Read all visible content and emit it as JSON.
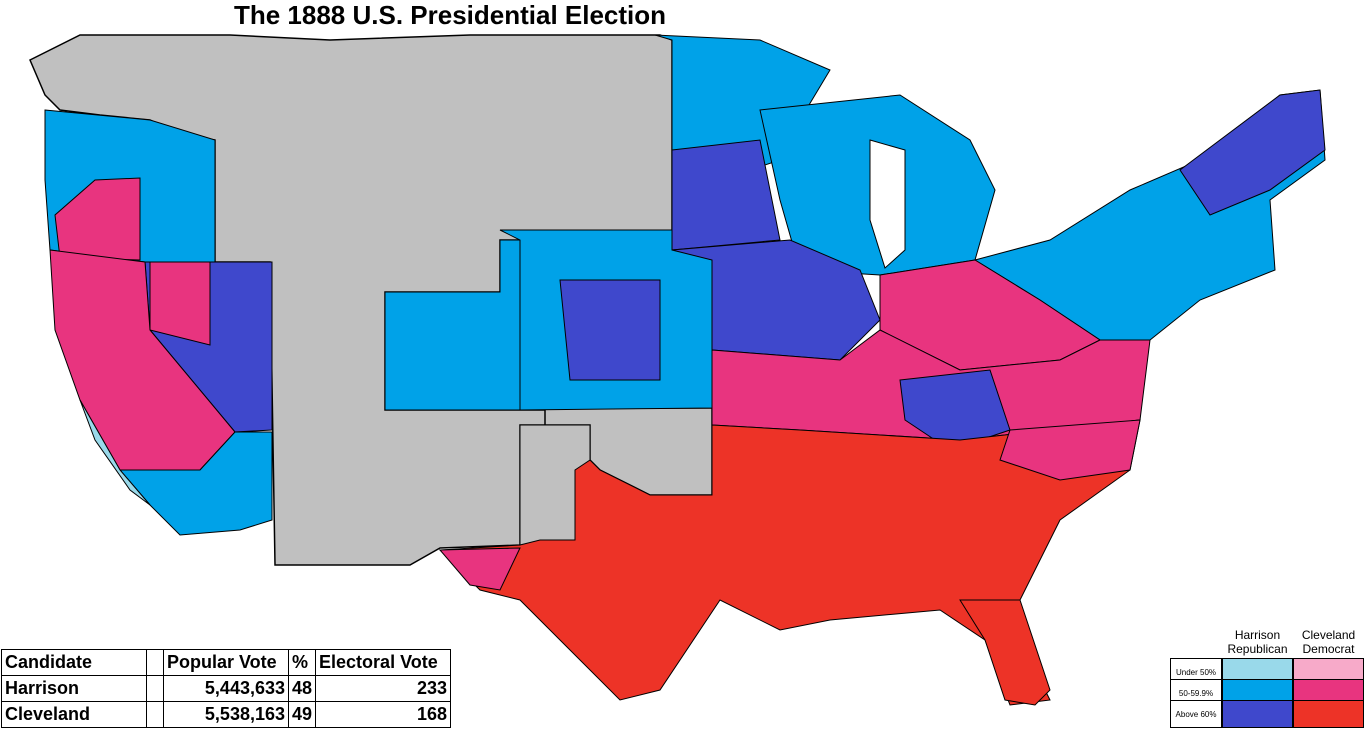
{
  "title": "The 1888 U.S. Presidential Election",
  "colors": {
    "territory": "#c0c0c0",
    "rep_under50": "#99d9ea",
    "rep_50_59": "#00a2e8",
    "rep_above60": "#3f48cc",
    "dem_under50": "#f7aac9",
    "dem_50_59": "#e8347f",
    "dem_above60": "#ed3327"
  },
  "results_table": {
    "headers": [
      "Candidate",
      "",
      "Popular Vote",
      "%",
      "Electoral Vote"
    ],
    "rows": [
      {
        "candidate": "Harrison",
        "popular_vote": "5,443,633",
        "percent": "48",
        "electoral_vote": "233"
      },
      {
        "candidate": "Cleveland",
        "popular_vote": "5,538,163",
        "percent": "49",
        "electoral_vote": "168"
      }
    ]
  },
  "legend": {
    "rep_header": "Harrison Republican",
    "dem_header": "Cleveland Democrat",
    "rows": [
      "Under 50%",
      "50-59.9%",
      "Above 60%"
    ]
  }
}
